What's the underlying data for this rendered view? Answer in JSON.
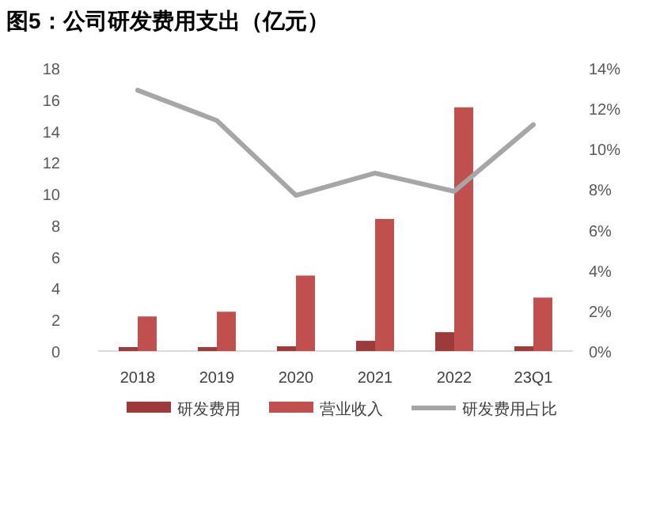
{
  "chart_data": {
    "type": "bar",
    "title": "图5：公司研发费用支出（亿元）",
    "categories": [
      "2018",
      "2019",
      "2020",
      "2021",
      "2022",
      "23Q1"
    ],
    "series": [
      {
        "name": "研发费用",
        "color": "#9c3b3a",
        "values": [
          0.25,
          0.25,
          0.3,
          0.65,
          1.2,
          0.3
        ]
      },
      {
        "name": "营业收入",
        "color": "#c0504d",
        "values": [
          2.2,
          2.5,
          4.8,
          8.4,
          15.5,
          3.4
        ]
      },
      {
        "name": "研发费用占比",
        "type": "line",
        "axis": "y2",
        "color": "#a6a6a6",
        "values": [
          12.9,
          11.4,
          7.7,
          8.8,
          7.9,
          11.2
        ]
      }
    ],
    "ylim": [
      0,
      18
    ],
    "yticks": [
      0,
      2,
      4,
      6,
      8,
      10,
      12,
      14,
      16,
      18
    ],
    "y2lim": [
      0,
      14
    ],
    "y2ticks": [
      {
        "value": 0,
        "label": "0%"
      },
      {
        "value": 2,
        "label": "2%"
      },
      {
        "value": 4,
        "label": "4%"
      },
      {
        "value": 6,
        "label": "6%"
      },
      {
        "value": 8,
        "label": "8%"
      },
      {
        "value": 10,
        "label": "10%"
      },
      {
        "value": 12,
        "label": "12%"
      },
      {
        "value": 14,
        "label": "14%"
      }
    ],
    "legend": "bottom",
    "grid": false
  }
}
